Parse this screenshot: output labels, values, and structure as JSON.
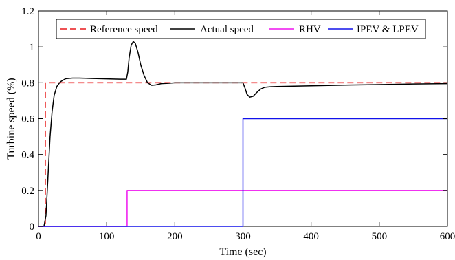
{
  "chart_data": {
    "type": "line",
    "xlabel": "Time (sec)",
    "ylabel": "Turbine speed (%)",
    "xlim": [
      0,
      600
    ],
    "ylim": [
      0,
      1.2
    ],
    "xticks": [
      0,
      100,
      200,
      300,
      400,
      500,
      600
    ],
    "yticks": [
      0,
      0.2,
      0.4,
      0.6,
      0.8,
      1,
      1.2
    ],
    "xtick_labels": [
      "0",
      "100",
      "200",
      "300",
      "400",
      "500",
      "600"
    ],
    "ytick_labels": [
      "0",
      "0.2",
      "0.4",
      "0.6",
      "0.8",
      "1",
      "1.2"
    ],
    "grid": false,
    "legend_position": "top",
    "series": [
      {
        "name": "Reference speed",
        "color": "#e8191b",
        "style": "dashed",
        "x": [
          0,
          10,
          10,
          600
        ],
        "y": [
          0,
          0,
          0.8,
          0.8
        ]
      },
      {
        "name": "Actual speed",
        "color": "#000000",
        "style": "solid",
        "x": [
          0,
          8,
          11,
          14,
          17,
          20,
          23,
          27,
          32,
          40,
          50,
          60,
          80,
          100,
          110,
          120,
          129,
          131,
          133,
          136,
          139,
          142,
          146,
          150,
          155,
          160,
          166,
          172,
          180,
          190,
          200,
          230,
          260,
          300,
          303,
          306,
          310,
          315,
          320,
          326,
          332,
          340,
          350,
          400,
          450,
          500,
          550,
          600
        ],
        "y": [
          0,
          0,
          0.06,
          0.28,
          0.5,
          0.64,
          0.73,
          0.78,
          0.805,
          0.823,
          0.826,
          0.826,
          0.824,
          0.822,
          0.821,
          0.82,
          0.82,
          0.86,
          0.94,
          1.01,
          1.03,
          1.02,
          0.97,
          0.9,
          0.84,
          0.8,
          0.786,
          0.788,
          0.795,
          0.797,
          0.8,
          0.8,
          0.8,
          0.8,
          0.77,
          0.735,
          0.72,
          0.725,
          0.745,
          0.765,
          0.775,
          0.778,
          0.779,
          0.783,
          0.787,
          0.79,
          0.793,
          0.795
        ]
      },
      {
        "name": "RHV",
        "color": "#ee14ee",
        "style": "solid",
        "x": [
          0,
          130,
          130,
          600
        ],
        "y": [
          0,
          0,
          0.2,
          0.2
        ]
      },
      {
        "name": "IPEV & LPEV",
        "color": "#1212ea",
        "style": "solid",
        "x": [
          0,
          300,
          300,
          600
        ],
        "y": [
          0,
          0,
          0.6,
          0.6
        ]
      }
    ]
  }
}
